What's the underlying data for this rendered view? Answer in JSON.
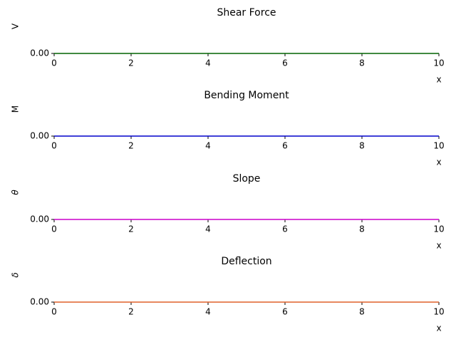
{
  "chart_data": [
    {
      "type": "line",
      "title": "Shear Force",
      "y_label": "V",
      "x_label": "x",
      "x": [
        0,
        10
      ],
      "series": [
        {
          "color": "#006400",
          "values": [
            0,
            0
          ]
        }
      ],
      "xlim": [
        0,
        10
      ],
      "xticks": [
        0,
        2,
        4,
        6,
        8,
        10
      ],
      "ylim": [
        0,
        1
      ],
      "yticks": [
        {
          "value": 0,
          "label": "0.00"
        }
      ]
    },
    {
      "type": "line",
      "title": "Bending Moment",
      "y_label": "M",
      "x_label": "x",
      "x": [
        0,
        10
      ],
      "series": [
        {
          "color": "#0000cc",
          "values": [
            0,
            0
          ]
        }
      ],
      "xlim": [
        0,
        10
      ],
      "xticks": [
        0,
        2,
        4,
        6,
        8,
        10
      ],
      "ylim": [
        0,
        1
      ],
      "yticks": [
        {
          "value": 0,
          "label": "0.00"
        }
      ]
    },
    {
      "type": "line",
      "title": "Slope",
      "y_label": "θ",
      "x_label": "x",
      "x": [
        0,
        10
      ],
      "series": [
        {
          "color": "#cc00cc",
          "values": [
            0,
            0
          ]
        }
      ],
      "xlim": [
        0,
        10
      ],
      "xticks": [
        0,
        2,
        4,
        6,
        8,
        10
      ],
      "ylim": [
        0,
        1
      ],
      "yticks": [
        {
          "value": 0,
          "label": "0.00"
        }
      ]
    },
    {
      "type": "line",
      "title": "Deflection",
      "y_label": "δ",
      "x_label": "x",
      "x": [
        0,
        10
      ],
      "series": [
        {
          "color": "#e0602a",
          "values": [
            0,
            0
          ]
        }
      ],
      "xlim": [
        0,
        10
      ],
      "xticks": [
        0,
        2,
        4,
        6,
        8,
        10
      ],
      "ylim": [
        0,
        1
      ],
      "yticks": [
        {
          "value": 0,
          "label": "0.00"
        }
      ]
    }
  ]
}
